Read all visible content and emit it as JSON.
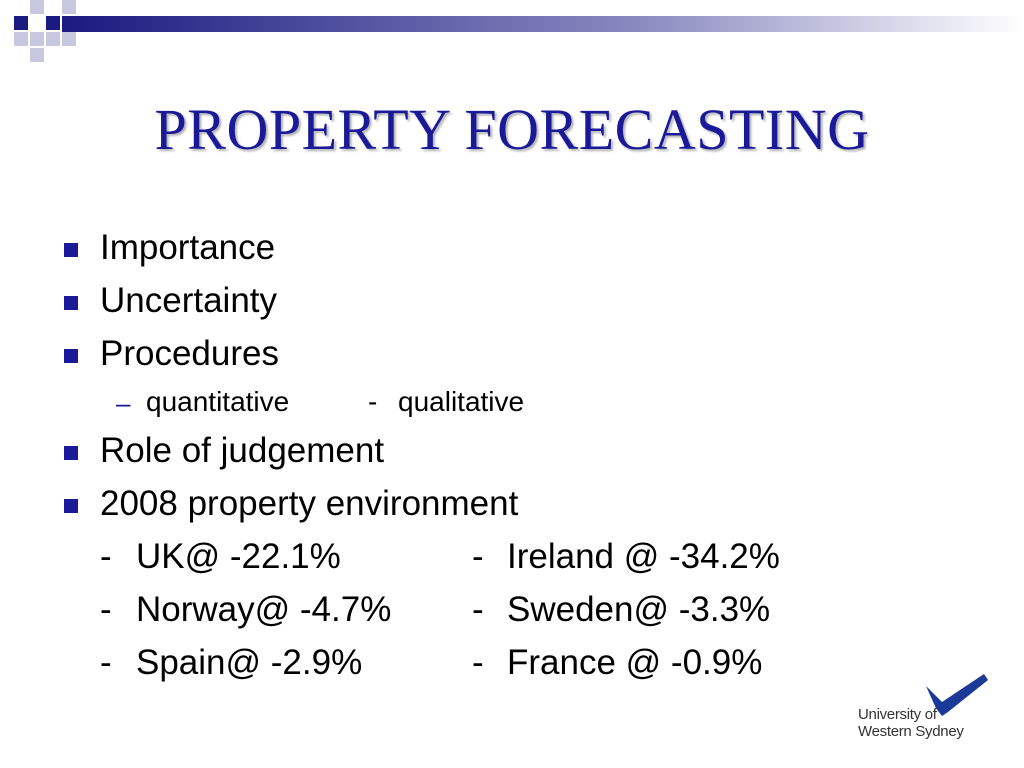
{
  "slide": {
    "title": "PROPERTY FORECASTING",
    "bullets": [
      {
        "text": "Importance"
      },
      {
        "text": "Uncertainty"
      },
      {
        "text": "Procedures"
      },
      {
        "text": "Role of judgement"
      },
      {
        "text": "2008 property environment"
      }
    ],
    "sub_bullet": {
      "dash": "–",
      "left": "quantitative",
      "separator": "-",
      "right": "qualitative"
    },
    "stats": [
      {
        "left_dash": "-",
        "left": "UK@ -22.1%",
        "right_dash": "-",
        "right": "Ireland @  -34.2%"
      },
      {
        "left_dash": "-",
        "left": "Norway@ -4.7%",
        "right_dash": "-",
        "right": "Sweden@ -3.3%"
      },
      {
        "left_dash": "-",
        "left": "Spain@ -2.9%",
        "right_dash": "-",
        "right": "France  @ -0.9%"
      }
    ]
  },
  "logo": {
    "line1": "University of",
    "line2": "Western Sydney"
  },
  "colors": {
    "title": "#1a1a99",
    "bullet": "#1a1a99",
    "corner_dark": "#1a1a80",
    "corner_light": "#c8c8e0"
  }
}
